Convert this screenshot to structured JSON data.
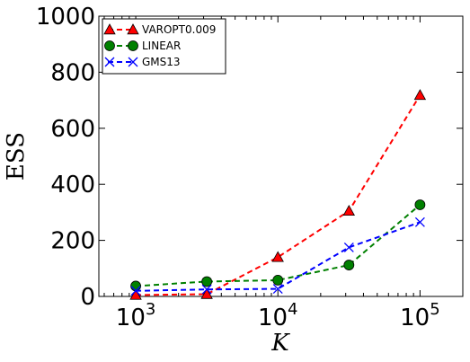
{
  "chart_data": {
    "type": "line",
    "xlabel": "K",
    "ylabel": "ESS",
    "x_scale": "log",
    "xlim": [
      550,
      200000
    ],
    "ylim": [
      0,
      1000
    ],
    "yticks": [
      0,
      200,
      400,
      600,
      800,
      1000
    ],
    "xticks": [
      {
        "value": 1000,
        "base": "10",
        "exp": "3"
      },
      {
        "value": 10000,
        "base": "10",
        "exp": "4"
      },
      {
        "value": 100000,
        "base": "10",
        "exp": "5"
      }
    ],
    "legend_position": "top-left",
    "grid": false,
    "series": [
      {
        "name": "VAROPT0.009",
        "color": "#ff0000",
        "marker": "triangle",
        "x": [
          1000,
          3162,
          10000,
          31623,
          100000
        ],
        "values": [
          5,
          8,
          140,
          305,
          718
        ]
      },
      {
        "name": "LINEAR",
        "color": "#008000",
        "marker": "circle",
        "x": [
          1000,
          3162,
          10000,
          31623,
          100000
        ],
        "values": [
          37,
          53,
          58,
          112,
          327
        ]
      },
      {
        "name": "GMS13",
        "color": "#0000ff",
        "marker": "x",
        "x": [
          1000,
          3162,
          10000,
          31623,
          100000
        ],
        "values": [
          20,
          25,
          27,
          175,
          265
        ]
      }
    ]
  }
}
